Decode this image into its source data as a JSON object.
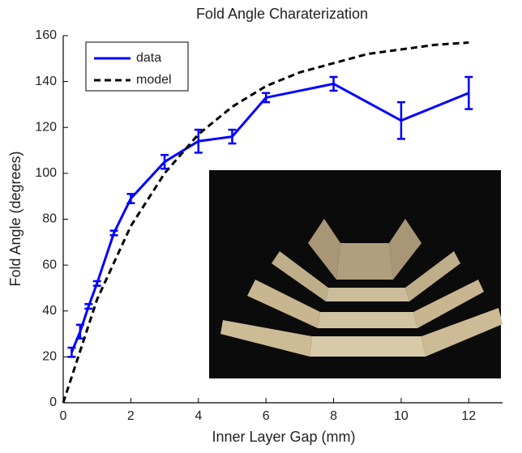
{
  "chart_data": {
    "type": "line",
    "title": "Fold Angle Charaterization",
    "x_label": "Inner Layer Gap (mm)",
    "y_label": "Fold Angle (degrees)",
    "xlim": [
      0,
      13
    ],
    "ylim": [
      0,
      160
    ],
    "xticks": [
      0,
      2,
      4,
      6,
      8,
      10,
      12
    ],
    "yticks": [
      0,
      20,
      40,
      60,
      80,
      100,
      120,
      140,
      160
    ],
    "legend": "top-left",
    "series": [
      {
        "name": "data",
        "color": "#0000ff",
        "style": "solid",
        "x": [
          0.25,
          0.5,
          0.75,
          1,
          1.5,
          2,
          3,
          4,
          5,
          6,
          8,
          10,
          12
        ],
        "values": [
          22,
          31,
          42,
          52,
          74,
          89,
          105,
          114,
          116,
          133,
          139,
          123,
          135
        ],
        "errors": [
          2,
          3,
          1,
          1,
          1,
          2,
          3,
          5,
          3,
          2,
          3,
          8,
          7
        ]
      },
      {
        "name": "model",
        "color": "#000000",
        "style": "dashed",
        "x": [
          0,
          1,
          2,
          3,
          4,
          5,
          6,
          7,
          8,
          9,
          10,
          11,
          12
        ],
        "values": [
          0,
          45,
          77,
          100,
          117,
          129,
          138,
          144,
          148,
          152,
          154,
          156,
          157
        ]
      }
    ]
  }
}
